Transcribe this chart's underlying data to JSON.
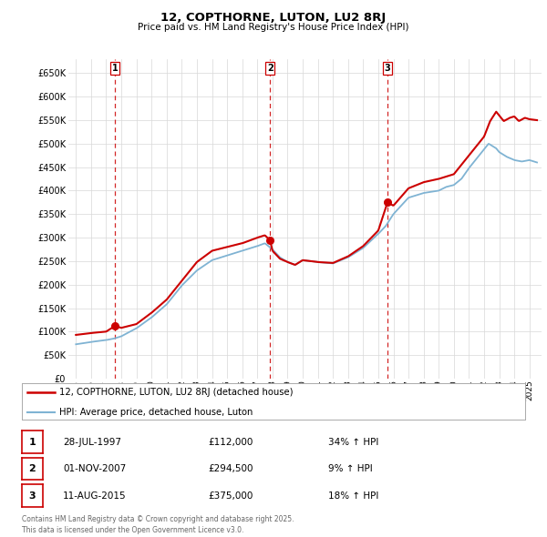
{
  "title1": "12, COPTHORNE, LUTON, LU2 8RJ",
  "title2": "Price paid vs. HM Land Registry's House Price Index (HPI)",
  "legend_line1": "12, COPTHORNE, LUTON, LU2 8RJ (detached house)",
  "legend_line2": "HPI: Average price, detached house, Luton",
  "sale_color": "#cc0000",
  "hpi_color": "#7fb3d3",
  "background_color": "#ffffff",
  "grid_color": "#d8d8d8",
  "ylim": [
    0,
    680000
  ],
  "yticks": [
    0,
    50000,
    100000,
    150000,
    200000,
    250000,
    300000,
    350000,
    400000,
    450000,
    500000,
    550000,
    600000,
    650000
  ],
  "sales": [
    {
      "date": 1997.58,
      "price": 112000,
      "label": "1"
    },
    {
      "date": 2007.84,
      "price": 294500,
      "label": "2"
    },
    {
      "date": 2015.61,
      "price": 375000,
      "label": "3"
    }
  ],
  "table_entries": [
    {
      "num": "1",
      "date": "28-JUL-1997",
      "price": "£112,000",
      "hpi": "34% ↑ HPI"
    },
    {
      "num": "2",
      "date": "01-NOV-2007",
      "price": "£294,500",
      "hpi": "9% ↑ HPI"
    },
    {
      "num": "3",
      "date": "11-AUG-2015",
      "price": "£375,000",
      "hpi": "18% ↑ HPI"
    }
  ],
  "footer": "Contains HM Land Registry data © Crown copyright and database right 2025.\nThis data is licensed under the Open Government Licence v3.0.",
  "vline_color": "#cc0000",
  "xlim": [
    1994.5,
    2025.8
  ],
  "xtick_years": [
    1995,
    1996,
    1997,
    1998,
    1999,
    2000,
    2001,
    2002,
    2003,
    2004,
    2005,
    2006,
    2007,
    2008,
    2009,
    2010,
    2011,
    2012,
    2013,
    2014,
    2015,
    2016,
    2017,
    2018,
    2019,
    2020,
    2021,
    2022,
    2023,
    2024,
    2025
  ]
}
